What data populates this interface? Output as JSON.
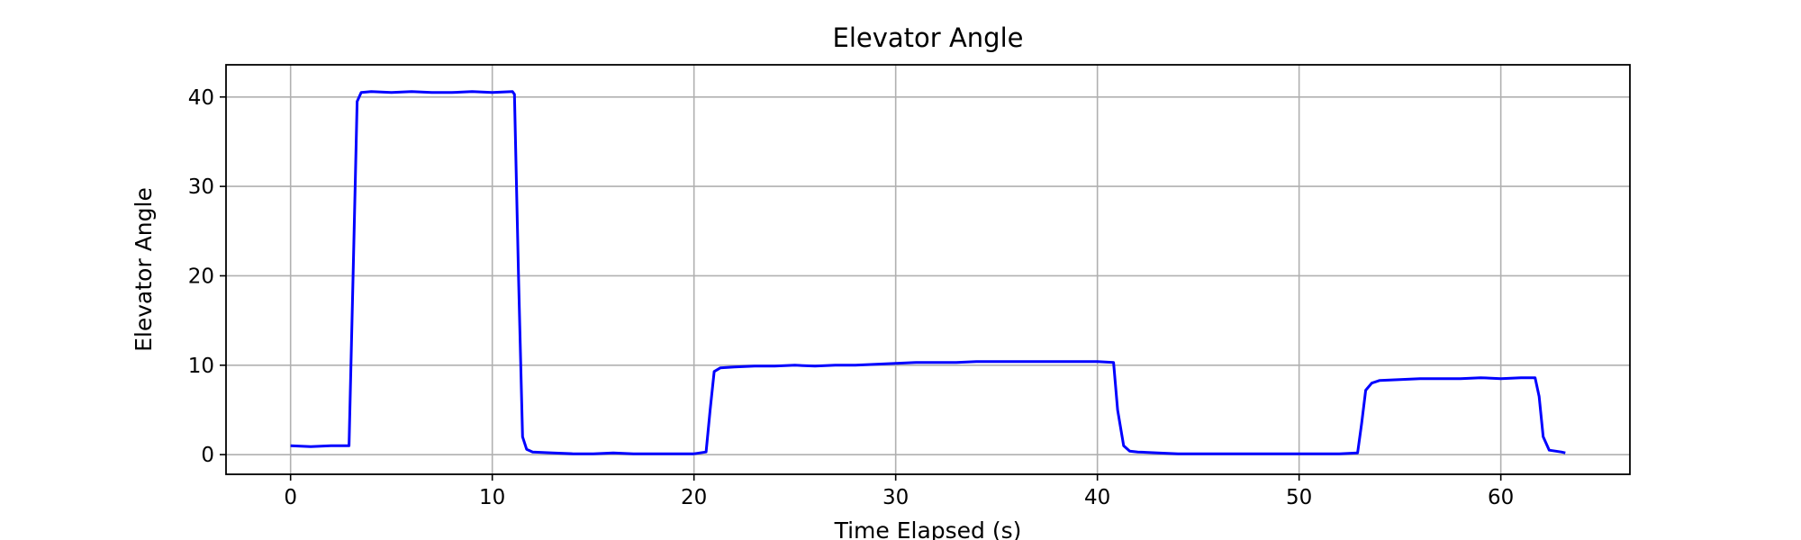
{
  "chart_data": {
    "type": "line",
    "title": "Elevator Angle",
    "xlabel": "Time Elapsed (s)",
    "ylabel": "Elevator Angle",
    "xlim": [
      -3.2,
      66.4
    ],
    "ylim": [
      -2.2,
      43.6
    ],
    "xticks": [
      0,
      10,
      20,
      30,
      40,
      50,
      60
    ],
    "yticks": [
      0,
      10,
      20,
      30,
      40
    ],
    "grid": true,
    "legend": "none",
    "series": [
      {
        "color": "#0000ff",
        "x": [
          0,
          1,
          2,
          2.9,
          3.1,
          3.3,
          3.5,
          4,
          5,
          6,
          7,
          8,
          9,
          10,
          11,
          11.1,
          11.3,
          11.5,
          11.7,
          12,
          13,
          14,
          15,
          16,
          17,
          18,
          19,
          20,
          20.6,
          20.8,
          21,
          21.3,
          22,
          23,
          24,
          25,
          26,
          27,
          28,
          29,
          30,
          31,
          32,
          33,
          34,
          35,
          36,
          37,
          38,
          39,
          40,
          40.8,
          41.0,
          41.3,
          41.6,
          42,
          43,
          44,
          45,
          46,
          47,
          48,
          49,
          50,
          51,
          52,
          52.9,
          53.1,
          53.3,
          53.6,
          54,
          55,
          56,
          57,
          58,
          59,
          60,
          61,
          61.7,
          61.9,
          62.1,
          62.4,
          63,
          63.2
        ],
        "y": [
          1.0,
          0.9,
          1.0,
          1.0,
          20.0,
          39.5,
          40.5,
          40.6,
          40.5,
          40.6,
          40.5,
          40.5,
          40.6,
          40.5,
          40.6,
          40.3,
          20.0,
          2.0,
          0.6,
          0.3,
          0.2,
          0.1,
          0.1,
          0.2,
          0.1,
          0.1,
          0.1,
          0.1,
          0.3,
          5.0,
          9.3,
          9.7,
          9.8,
          9.9,
          9.9,
          10.0,
          9.9,
          10.0,
          10.0,
          10.1,
          10.2,
          10.3,
          10.3,
          10.3,
          10.4,
          10.4,
          10.4,
          10.4,
          10.4,
          10.4,
          10.4,
          10.3,
          5.0,
          1.0,
          0.4,
          0.3,
          0.2,
          0.1,
          0.1,
          0.1,
          0.1,
          0.1,
          0.1,
          0.1,
          0.1,
          0.1,
          0.2,
          3.5,
          7.2,
          8.0,
          8.3,
          8.4,
          8.5,
          8.5,
          8.5,
          8.6,
          8.5,
          8.6,
          8.6,
          6.5,
          2.0,
          0.5,
          0.3,
          0.2
        ]
      }
    ]
  }
}
